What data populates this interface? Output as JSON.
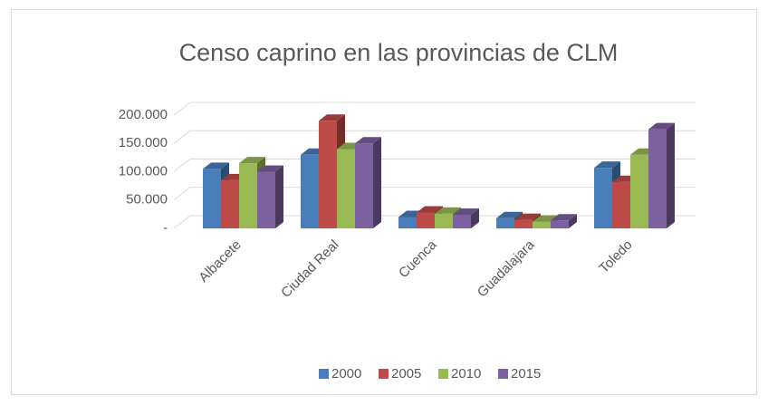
{
  "chart_data": {
    "type": "bar3d",
    "title": "Censo caprino en las provincias de CLM",
    "categories": [
      "Albacete",
      "Ciudad Real",
      "Cuenca",
      "Guadalajara",
      "Toledo"
    ],
    "series": [
      {
        "name": "2000",
        "color": "#4a7ebb",
        "values": [
          105000,
          130000,
          20000,
          18000,
          107000
        ]
      },
      {
        "name": "2005",
        "color": "#be4b48",
        "values": [
          85000,
          190000,
          28000,
          15000,
          82000
        ]
      },
      {
        "name": "2010",
        "color": "#98b954",
        "values": [
          115000,
          140000,
          26000,
          12000,
          130000
        ]
      },
      {
        "name": "2015",
        "color": "#7d60a0",
        "values": [
          100000,
          150000,
          24000,
          14000,
          175000
        ]
      }
    ],
    "ylim": [
      0,
      200000
    ],
    "yticks": [
      {
        "value": 0,
        "label": "-"
      },
      {
        "value": 50000,
        "label": "50.000"
      },
      {
        "value": 100000,
        "label": "100.000"
      },
      {
        "value": 150000,
        "label": "150.000"
      },
      {
        "value": 200000,
        "label": "200.000"
      }
    ],
    "grid": true,
    "legend": "bottom"
  }
}
